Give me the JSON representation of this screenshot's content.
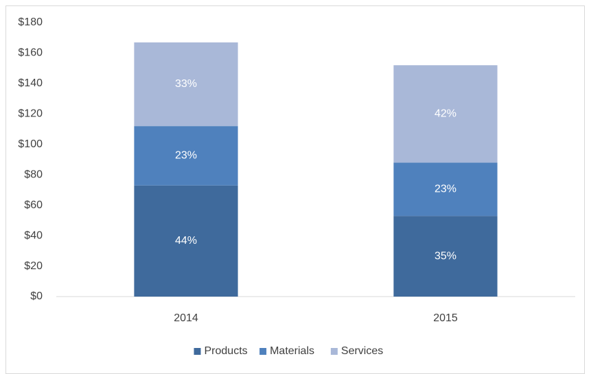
{
  "chart_data": {
    "type": "stacked_bar",
    "categories": [
      "2014",
      "2015"
    ],
    "series": [
      {
        "name": "Products",
        "color": "#3f6a9c",
        "values": [
          73,
          53
        ],
        "data_labels": [
          "44%",
          "35%"
        ]
      },
      {
        "name": "Materials",
        "color": "#4f81bd",
        "values": [
          39,
          35
        ],
        "data_labels": [
          "23%",
          "23%"
        ]
      },
      {
        "name": "Services",
        "color": "#a9b8d8",
        "values": [
          55,
          64
        ],
        "data_labels": [
          "33%",
          "42%"
        ]
      }
    ],
    "ylim": [
      0,
      180
    ],
    "yticks": [
      {
        "value": 0,
        "label": "$0"
      },
      {
        "value": 20,
        "label": "$20"
      },
      {
        "value": 40,
        "label": "$40"
      },
      {
        "value": 60,
        "label": "$60"
      },
      {
        "value": 80,
        "label": "$80"
      },
      {
        "value": 100,
        "label": "$100"
      },
      {
        "value": 120,
        "label": "$120"
      },
      {
        "value": 140,
        "label": "$140"
      },
      {
        "value": 160,
        "label": "$160"
      },
      {
        "value": 180,
        "label": "$180"
      }
    ],
    "grid": false,
    "legend": "bottom"
  }
}
